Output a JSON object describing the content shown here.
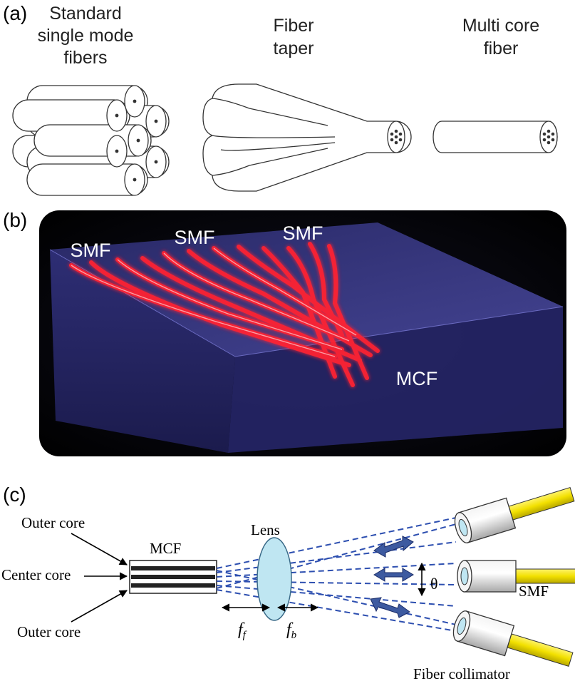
{
  "panel_a": {
    "label": "(a)",
    "smf_title": [
      "Standard",
      "single mode",
      "fibers"
    ],
    "taper_title": [
      "Fiber",
      "taper"
    ],
    "mcf_title": [
      "Multi core",
      "fiber"
    ]
  },
  "panel_b": {
    "label": "(b)",
    "smf_labels": [
      "SMF",
      "SMF",
      "SMF"
    ],
    "mcf_label": "MCF"
  },
  "panel_c": {
    "label": "(c)",
    "outer_core_top": "Outer core",
    "center_core": "Center core",
    "outer_core_bottom": "Outer core",
    "mcf_label": "MCF",
    "lens_label": "Lens",
    "ff_main": "f",
    "ff_sub": "f",
    "fb_main": "f",
    "fb_sub": "b",
    "theta": "θ",
    "smf_label": "SMF",
    "collimator_label": "Fiber collimator"
  },
  "colors": {
    "fiber_glow": "#ff2a3a",
    "chip_blue": "#3a3a8a",
    "beam_dash": "#2d4fb0",
    "collimator_yellow": "#f2e000",
    "lens_fill": "#bfe6f2"
  }
}
